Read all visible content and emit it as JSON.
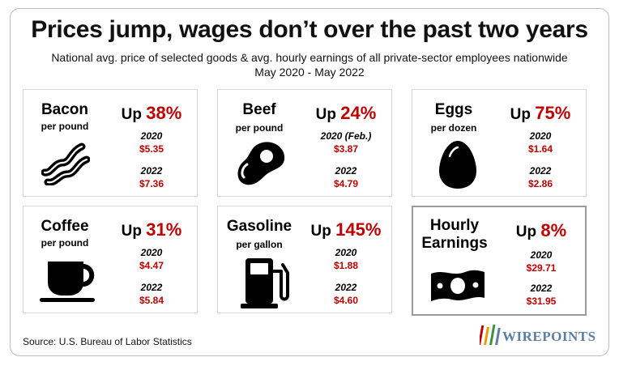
{
  "title": "Prices jump, wages don’t over the past two years",
  "subtitle_line1": "National avg. price of selected goods & avg. hourly earnings of all private-sector employees nationwide",
  "subtitle_line2": "May 2020 - May 2022",
  "source": "Source: U.S. Bureau of Labor Statistics",
  "logo": {
    "text": "WIREPOINTS",
    "color": "#5b7da6"
  },
  "colors": {
    "accent": "#c00000",
    "text": "#000000",
    "border": "#d6d6d6"
  },
  "chart_data": {
    "type": "table",
    "title": "Prices jump, wages don’t over the past two years",
    "up_word": "Up",
    "items": [
      {
        "name": "Bacon",
        "unit": "per pound",
        "change": "38%",
        "label_a": "2020",
        "value_a": "$5.35",
        "label_b": "2022",
        "value_b": "$7.36",
        "icon": "bacon-icon"
      },
      {
        "name": "Beef",
        "unit": "per pound",
        "change": "24%",
        "label_a": "2020 (Feb.)",
        "value_a": "$3.87",
        "label_b": "2022",
        "value_b": "$4.79",
        "icon": "steak-icon"
      },
      {
        "name": "Eggs",
        "unit": "per dozen",
        "change": "75%",
        "label_a": "2020",
        "value_a": "$1.64",
        "label_b": "2022",
        "value_b": "$2.86",
        "icon": "egg-icon"
      },
      {
        "name": "Coffee",
        "unit": "per pound",
        "change": "31%",
        "label_a": "2020",
        "value_a": "$4.47",
        "label_b": "2022",
        "value_b": "$5.84",
        "icon": "coffee-cup-icon"
      },
      {
        "name": "Gasoline",
        "unit": "per gallon",
        "change": "145%",
        "label_a": "2020",
        "value_a": "$1.88",
        "label_b": "2022",
        "value_b": "$4.60",
        "icon": "gas-pump-icon"
      },
      {
        "name_line1": "Hourly",
        "name_line2": "Earnings",
        "change": "8%",
        "label_a": "2020",
        "value_a": "$29.71",
        "label_b": "2022",
        "value_b": "$31.95",
        "icon": "money-bill-icon"
      }
    ]
  }
}
